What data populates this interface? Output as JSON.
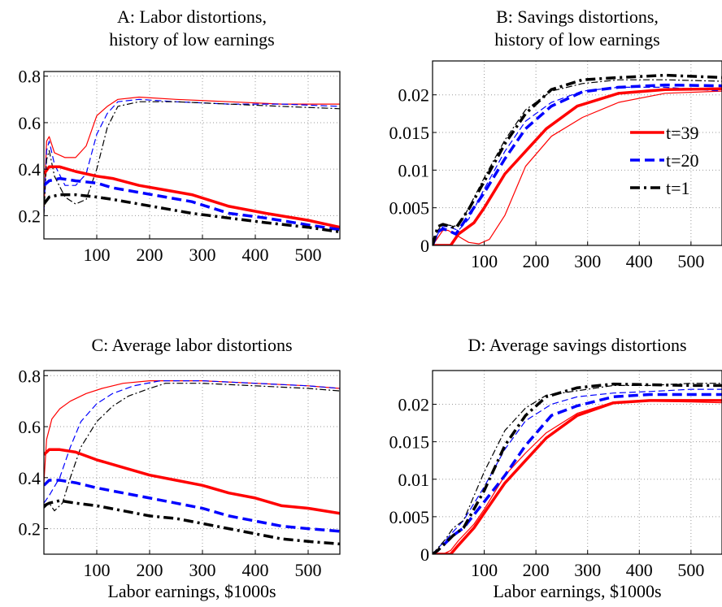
{
  "chart_data": [
    {
      "type": "line",
      "title": "A: Labor distortions,\nhistory of low earnings",
      "xlabel": "",
      "ylabel": "",
      "xlim": [
        0,
        560
      ],
      "ylim": [
        0.1,
        0.82
      ],
      "xticks": [
        100,
        200,
        300,
        400,
        500
      ],
      "xtick_labels": [
        "100",
        "200",
        "300",
        "400",
        "500"
      ],
      "yticks": [
        0.2,
        0.4,
        0.6,
        0.8
      ],
      "ytick_labels": [
        "0.2",
        "0.4",
        "0.6",
        "0.8"
      ],
      "grid": true,
      "series": [
        {
          "color": "#ff0000",
          "dash": "solid",
          "width": 3.5,
          "x": [
            0,
            10,
            30,
            60,
            100,
            130,
            180,
            230,
            280,
            350,
            420,
            500,
            560
          ],
          "y": [
            0.38,
            0.41,
            0.41,
            0.39,
            0.37,
            0.36,
            0.33,
            0.31,
            0.29,
            0.24,
            0.21,
            0.18,
            0.15
          ]
        },
        {
          "color": "#0000ff",
          "dash": "dashed",
          "width": 3.5,
          "x": [
            0,
            10,
            30,
            60,
            100,
            130,
            180,
            230,
            280,
            350,
            420,
            500,
            560
          ],
          "y": [
            0.33,
            0.35,
            0.36,
            0.35,
            0.34,
            0.32,
            0.3,
            0.28,
            0.26,
            0.21,
            0.19,
            0.16,
            0.14
          ]
        },
        {
          "color": "#000000",
          "dash": "dashdot",
          "width": 3.5,
          "x": [
            0,
            10,
            30,
            60,
            100,
            130,
            180,
            230,
            280,
            350,
            420,
            500,
            560
          ],
          "y": [
            0.25,
            0.28,
            0.29,
            0.29,
            0.28,
            0.27,
            0.25,
            0.23,
            0.21,
            0.19,
            0.17,
            0.15,
            0.13
          ]
        },
        {
          "color": "#ff0000",
          "dash": "solid",
          "width": 1.2,
          "x": [
            0,
            5,
            10,
            20,
            40,
            60,
            80,
            100,
            120,
            140,
            180,
            250,
            350,
            450,
            560
          ],
          "y": [
            0.22,
            0.52,
            0.54,
            0.47,
            0.45,
            0.45,
            0.5,
            0.63,
            0.67,
            0.7,
            0.71,
            0.7,
            0.69,
            0.68,
            0.68
          ]
        },
        {
          "color": "#0000ff",
          "dash": "dashed",
          "width": 1.2,
          "x": [
            0,
            5,
            10,
            20,
            40,
            60,
            80,
            100,
            120,
            140,
            180,
            250,
            350,
            450,
            560
          ],
          "y": [
            0.21,
            0.48,
            0.52,
            0.42,
            0.33,
            0.33,
            0.38,
            0.55,
            0.64,
            0.69,
            0.7,
            0.69,
            0.68,
            0.68,
            0.67
          ]
        },
        {
          "color": "#000000",
          "dash": "dashdot",
          "width": 1.2,
          "x": [
            0,
            5,
            10,
            20,
            40,
            60,
            80,
            100,
            120,
            140,
            180,
            250,
            350,
            450,
            560
          ],
          "y": [
            0.2,
            0.44,
            0.48,
            0.37,
            0.28,
            0.25,
            0.27,
            0.4,
            0.58,
            0.67,
            0.69,
            0.69,
            0.68,
            0.67,
            0.66
          ]
        }
      ]
    },
    {
      "type": "line",
      "title": "B: Savings distortions,\nhistory of low earnings",
      "xlabel": "",
      "ylabel": "",
      "xlim": [
        0,
        560
      ],
      "ylim": [
        0,
        0.0245
      ],
      "xticks": [
        100,
        200,
        300,
        400,
        500
      ],
      "xtick_labels": [
        "100",
        "200",
        "300",
        "400",
        "500"
      ],
      "yticks": [
        0,
        0.005,
        0.01,
        0.015,
        0.02
      ],
      "ytick_labels": [
        "0",
        "0.005",
        "0.01",
        "0.015",
        "0.02"
      ],
      "grid": true,
      "legend": {
        "position": "right",
        "entries": [
          "t=39",
          "t=20",
          "t=1"
        ]
      },
      "series": [
        {
          "name": "t=39",
          "color": "#ff0000",
          "dash": "solid",
          "width": 3.5,
          "x": [
            0,
            20,
            35,
            50,
            80,
            100,
            140,
            180,
            220,
            280,
            360,
            450,
            560
          ],
          "y": [
            0,
            0,
            0,
            0.0015,
            0.003,
            0.005,
            0.0095,
            0.0125,
            0.0155,
            0.0185,
            0.0202,
            0.0207,
            0.0208
          ]
        },
        {
          "name": "t=20",
          "color": "#0000ff",
          "dash": "dashed",
          "width": 3.5,
          "x": [
            0,
            10,
            20,
            30,
            45,
            70,
            100,
            140,
            180,
            230,
            290,
            360,
            450,
            560
          ],
          "y": [
            0,
            0.0018,
            0.0022,
            0.002,
            0.0015,
            0.004,
            0.007,
            0.0115,
            0.0155,
            0.0185,
            0.0204,
            0.021,
            0.0213,
            0.0212
          ]
        },
        {
          "name": "t=1",
          "color": "#000000",
          "dash": "dashdot",
          "width": 3.5,
          "x": [
            0,
            10,
            20,
            30,
            45,
            70,
            100,
            140,
            180,
            230,
            290,
            360,
            450,
            560
          ],
          "y": [
            0,
            0.0025,
            0.0028,
            0.0026,
            0.0023,
            0.0048,
            0.0085,
            0.0135,
            0.0175,
            0.0207,
            0.022,
            0.0223,
            0.0226,
            0.0223
          ]
        },
        {
          "color": "#ff0000",
          "dash": "solid",
          "width": 1.2,
          "x": [
            0,
            10,
            20,
            30,
            50,
            70,
            90,
            110,
            140,
            180,
            230,
            290,
            360,
            450,
            560
          ],
          "y": [
            0,
            0.001,
            0.002,
            0.002,
            0.0012,
            0.0004,
            0.0002,
            0.0008,
            0.004,
            0.0105,
            0.0145,
            0.017,
            0.019,
            0.0202,
            0.0205
          ]
        },
        {
          "color": "#0000ff",
          "dash": "dashed",
          "width": 1.2,
          "x": [
            0,
            10,
            20,
            30,
            50,
            70,
            100,
            140,
            180,
            230,
            290,
            360,
            450,
            560
          ],
          "y": [
            0,
            0.0015,
            0.0025,
            0.0025,
            0.002,
            0.0035,
            0.0075,
            0.0125,
            0.0165,
            0.019,
            0.0205,
            0.021,
            0.021,
            0.0205
          ]
        },
        {
          "color": "#000000",
          "dash": "dashdot",
          "width": 1.2,
          "x": [
            0,
            10,
            20,
            30,
            50,
            70,
            100,
            140,
            180,
            230,
            290,
            360,
            450,
            560
          ],
          "y": [
            0,
            0.002,
            0.0028,
            0.0027,
            0.0025,
            0.005,
            0.009,
            0.014,
            0.018,
            0.0205,
            0.0215,
            0.022,
            0.022,
            0.0218
          ]
        }
      ]
    },
    {
      "type": "line",
      "title": "C: Average labor distortions",
      "xlabel": "Labor earnings, $1000s",
      "ylabel": "",
      "xlim": [
        0,
        560
      ],
      "ylim": [
        0.1,
        0.82
      ],
      "xticks": [
        100,
        200,
        300,
        400,
        500
      ],
      "xtick_labels": [
        "100",
        "200",
        "300",
        "400",
        "500"
      ],
      "yticks": [
        0.2,
        0.4,
        0.6,
        0.8
      ],
      "ytick_labels": [
        "0.2",
        "0.4",
        "0.6",
        "0.8"
      ],
      "grid": true,
      "series": [
        {
          "color": "#ff0000",
          "dash": "solid",
          "width": 3.5,
          "x": [
            0,
            10,
            30,
            60,
            100,
            150,
            200,
            250,
            300,
            350,
            400,
            450,
            500,
            560
          ],
          "y": [
            0.49,
            0.51,
            0.51,
            0.5,
            0.47,
            0.44,
            0.41,
            0.39,
            0.37,
            0.34,
            0.32,
            0.29,
            0.28,
            0.26
          ]
        },
        {
          "color": "#0000ff",
          "dash": "dashed",
          "width": 3.5,
          "x": [
            0,
            10,
            30,
            60,
            100,
            150,
            200,
            250,
            300,
            350,
            400,
            450,
            500,
            560
          ],
          "y": [
            0.37,
            0.39,
            0.39,
            0.38,
            0.36,
            0.34,
            0.32,
            0.3,
            0.28,
            0.25,
            0.23,
            0.21,
            0.2,
            0.19
          ]
        },
        {
          "color": "#000000",
          "dash": "dashdot",
          "width": 3.5,
          "x": [
            0,
            10,
            30,
            60,
            100,
            150,
            200,
            250,
            300,
            350,
            400,
            450,
            500,
            560
          ],
          "y": [
            0.29,
            0.3,
            0.31,
            0.3,
            0.29,
            0.27,
            0.25,
            0.24,
            0.22,
            0.2,
            0.18,
            0.16,
            0.15,
            0.14
          ]
        },
        {
          "color": "#ff0000",
          "dash": "solid",
          "width": 1.2,
          "x": [
            0,
            5,
            15,
            30,
            50,
            80,
            110,
            150,
            200,
            250,
            300,
            400,
            500,
            560
          ],
          "y": [
            0.38,
            0.55,
            0.63,
            0.67,
            0.7,
            0.73,
            0.75,
            0.77,
            0.78,
            0.78,
            0.78,
            0.77,
            0.76,
            0.75
          ]
        },
        {
          "color": "#0000ff",
          "dash": "dashed",
          "width": 1.2,
          "x": [
            0,
            10,
            30,
            50,
            70,
            100,
            130,
            170,
            220,
            300,
            400,
            500,
            560
          ],
          "y": [
            0.3,
            0.33,
            0.4,
            0.52,
            0.62,
            0.69,
            0.73,
            0.76,
            0.78,
            0.78,
            0.77,
            0.76,
            0.75
          ]
        },
        {
          "color": "#000000",
          "dash": "dashdot",
          "width": 1.2,
          "x": [
            0,
            10,
            20,
            35,
            50,
            70,
            100,
            130,
            160,
            200,
            230,
            300,
            400,
            500,
            560
          ],
          "y": [
            0.28,
            0.3,
            0.27,
            0.3,
            0.4,
            0.52,
            0.62,
            0.68,
            0.72,
            0.75,
            0.77,
            0.77,
            0.76,
            0.75,
            0.74
          ]
        }
      ]
    },
    {
      "type": "line",
      "title": "D: Average savings distortions",
      "xlabel": "Labor earnings, $1000s",
      "ylabel": "",
      "xlim": [
        0,
        560
      ],
      "ylim": [
        0,
        0.0245
      ],
      "xticks": [
        100,
        200,
        300,
        400,
        500
      ],
      "xtick_labels": [
        "100",
        "200",
        "300",
        "400",
        "500"
      ],
      "yticks": [
        0,
        0.005,
        0.01,
        0.015,
        0.02
      ],
      "ytick_labels": [
        "0",
        "0.005",
        "0.01",
        "0.015",
        "0.02"
      ],
      "grid": true,
      "series": [
        {
          "color": "#ff0000",
          "dash": "solid",
          "width": 3.5,
          "x": [
            0,
            20,
            35,
            50,
            80,
            100,
            140,
            180,
            220,
            280,
            350,
            420,
            500,
            560
          ],
          "y": [
            0,
            0,
            0,
            0.0012,
            0.0035,
            0.0055,
            0.0095,
            0.0125,
            0.0155,
            0.0185,
            0.0202,
            0.0205,
            0.0205,
            0.0205
          ]
        },
        {
          "color": "#0000ff",
          "dash": "dashed",
          "width": 3.5,
          "x": [
            0,
            10,
            25,
            40,
            60,
            100,
            140,
            180,
            230,
            280,
            350,
            420,
            500,
            560
          ],
          "y": [
            0,
            0.0005,
            0.0015,
            0.0025,
            0.0035,
            0.007,
            0.0105,
            0.0145,
            0.0185,
            0.0198,
            0.021,
            0.0213,
            0.0213,
            0.0213
          ]
        },
        {
          "color": "#000000",
          "dash": "dashdot",
          "width": 3.5,
          "x": [
            0,
            10,
            25,
            40,
            60,
            100,
            140,
            180,
            220,
            280,
            350,
            420,
            500,
            560
          ],
          "y": [
            0,
            0.0005,
            0.0015,
            0.0025,
            0.0035,
            0.0085,
            0.0145,
            0.0185,
            0.021,
            0.0222,
            0.0227,
            0.0226,
            0.0225,
            0.0225
          ]
        },
        {
          "color": "#ff0000",
          "dash": "solid",
          "width": 1.2,
          "x": [
            0,
            20,
            35,
            50,
            80,
            100,
            140,
            180,
            220,
            280,
            350,
            420,
            500,
            560
          ],
          "y": [
            0,
            0,
            0.0005,
            0.0018,
            0.004,
            0.006,
            0.0105,
            0.0135,
            0.0162,
            0.0188,
            0.0203,
            0.0204,
            0.0203,
            0.0202
          ]
        },
        {
          "color": "#0000ff",
          "dash": "dashed",
          "width": 1.2,
          "x": [
            0,
            10,
            25,
            40,
            60,
            100,
            140,
            180,
            230,
            280,
            350,
            420,
            500,
            560
          ],
          "y": [
            0,
            0.0008,
            0.0018,
            0.003,
            0.0045,
            0.009,
            0.014,
            0.0178,
            0.02,
            0.021,
            0.0215,
            0.0217,
            0.022,
            0.022
          ]
        },
        {
          "color": "#000000",
          "dash": "dashdot",
          "width": 1.2,
          "x": [
            0,
            10,
            25,
            40,
            60,
            100,
            140,
            180,
            220,
            280,
            350,
            420,
            500,
            560
          ],
          "y": [
            0,
            0.0008,
            0.002,
            0.0035,
            0.0045,
            0.011,
            0.0165,
            0.0195,
            0.0212,
            0.0218,
            0.0225,
            0.0225,
            0.0228,
            0.0228
          ]
        }
      ]
    }
  ]
}
